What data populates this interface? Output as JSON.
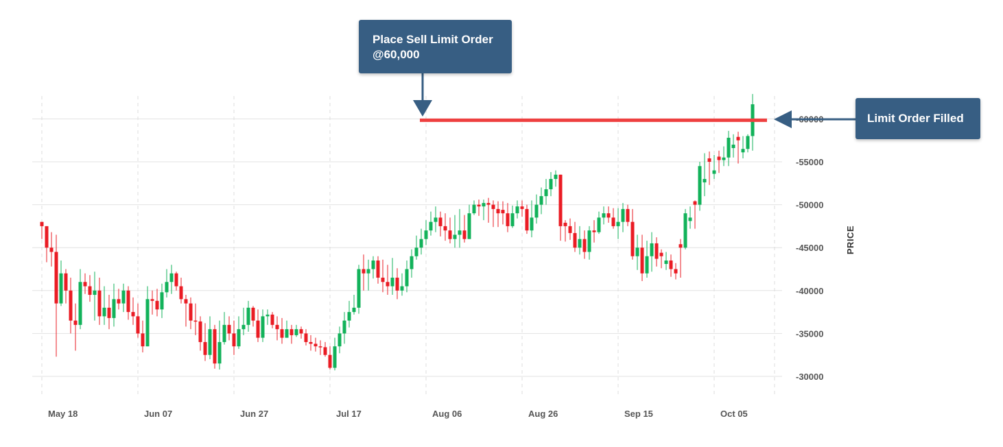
{
  "annotations": {
    "place_order": {
      "line1": "Place Sell Limit Order",
      "line2": "@60,000"
    },
    "filled": {
      "text": "Limit Order Filled"
    }
  },
  "colors": {
    "up": "#12b25a",
    "down": "#ea1c24",
    "limit_line": "#ee4040",
    "callout_bg": "#375e83",
    "grid": "#e2e2e2"
  },
  "chart_data": {
    "type": "candlestick",
    "ylabel": "PRICE",
    "ylim": [
      28000,
      63000
    ],
    "yticks": [
      30000,
      35000,
      40000,
      45000,
      50000,
      55000,
      60000
    ],
    "ytick_labels": [
      "-30000",
      "-35000",
      "-40000",
      "-45000",
      "-50000",
      "-55000",
      "-60000"
    ],
    "x_start_label": "May 18",
    "x_end_label": "Oct 10",
    "xticks": [
      {
        "label": "May 18",
        "day": 0
      },
      {
        "label": "Jun 07",
        "day": 20
      },
      {
        "label": "Jun 27",
        "day": 40
      },
      {
        "label": "Jul 17",
        "day": 60
      },
      {
        "label": "Aug 06",
        "day": 80
      },
      {
        "label": "Aug 26",
        "day": 100
      },
      {
        "label": "Sep 15",
        "day": 120
      },
      {
        "label": "Oct 05",
        "day": 140
      }
    ],
    "x_range_days": [
      -0.5,
      151.5
    ],
    "limit_order": {
      "price": 60000,
      "start_day": 80,
      "end_day": 151
    },
    "grid": true,
    "closes": [
      47500,
      45000,
      44500,
      38500,
      42000,
      40000,
      36500,
      36000,
      41000,
      40500,
      39500,
      40000,
      37000,
      38000,
      36800,
      39000,
      38500,
      40000,
      37500,
      37000,
      35000,
      33500,
      39000,
      38800,
      37800,
      39800,
      41000,
      42000,
      40500,
      39000,
      38500,
      36500,
      36400,
      34000,
      32500,
      35500,
      31500,
      34000,
      36000,
      35000,
      33500,
      35500,
      36000,
      38000,
      36500,
      34500,
      37000,
      37200,
      36000,
      35500,
      34500,
      35500,
      34800,
      35500,
      35000,
      34000,
      33800,
      33500,
      33400,
      32500,
      31000,
      33500,
      35000,
      36500,
      37500,
      38000,
      42500,
      42000,
      42500,
      43500,
      41500,
      41000,
      40500,
      41500,
      40000,
      40500,
      42500,
      44000,
      45000,
      46000,
      47000,
      48000,
      48500,
      47500,
      47000,
      46000,
      46500,
      47000,
      46000,
      49000,
      50000,
      49800,
      50200,
      50000,
      49500,
      49000,
      49000,
      47500,
      49000,
      49800,
      49500,
      47000,
      48500,
      50000,
      51000,
      51800,
      53000,
      53500,
      47500,
      47500,
      46700,
      45000,
      46000,
      44500,
      47000,
      46800,
      48500,
      49000,
      48500,
      47500,
      48000,
      49500,
      48000,
      44000,
      45000,
      42000,
      44000,
      45500,
      43700,
      44000,
      43500,
      42500,
      42000,
      45000,
      49000,
      48500,
      50000,
      54500,
      53000,
      55000,
      54000,
      55200,
      55500,
      57800,
      57000,
      57500,
      56500,
      58000,
      61700
    ],
    "highs": [
      48000,
      47500,
      46800,
      46500,
      43500,
      42500,
      41500,
      38500,
      42500,
      42000,
      41800,
      42200,
      41500,
      40500,
      39500,
      40800,
      40200,
      40800,
      40500,
      39200,
      38500,
      36500,
      40500,
      40000,
      40200,
      40800,
      42500,
      43000,
      42200,
      41500,
      39500,
      39200,
      38500,
      37000,
      36200,
      37000,
      36000,
      36500,
      37500,
      37000,
      36500,
      37000,
      38000,
      38800,
      38200,
      37800,
      37800,
      37800,
      37500,
      37000,
      36800,
      36500,
      36000,
      36000,
      35800,
      35500,
      34800,
      34500,
      34200,
      34000,
      33500,
      34500,
      35800,
      37500,
      38800,
      39500,
      43000,
      44200,
      43600,
      44000,
      44000,
      43600,
      43000,
      43800,
      42600,
      42000,
      43500,
      44800,
      46400,
      47200,
      48200,
      49200,
      49800,
      49200,
      49000,
      48500,
      48800,
      49500,
      48800,
      50000,
      50500,
      50600,
      50600,
      50800,
      50500,
      50400,
      50400,
      50200,
      49900,
      50500,
      50500,
      50000,
      50500,
      51200,
      52000,
      53000,
      53800,
      54000,
      53500,
      48200,
      48400,
      48000,
      47500,
      47000,
      47500,
      48200,
      49200,
      49800,
      49800,
      49600,
      49600,
      50200,
      50000,
      49500,
      46500,
      46500,
      45800,
      46800,
      46200,
      44800,
      44500,
      44200,
      43200,
      46000,
      49500,
      49800,
      50500,
      55000,
      56000,
      56200,
      55800,
      56300,
      56800,
      58600,
      58200,
      58500,
      58000,
      58200,
      62900
    ],
    "lows": [
      46000,
      43300,
      42800,
      32300,
      38200,
      38500,
      35000,
      33000,
      35500,
      39600,
      38700,
      36500,
      36000,
      36000,
      35500,
      35800,
      37800,
      37500,
      36600,
      36000,
      34500,
      32800,
      35500,
      37200,
      37000,
      36800,
      39200,
      39600,
      40000,
      38500,
      35800,
      35500,
      34800,
      33000,
      31800,
      32000,
      30900,
      30800,
      33700,
      34200,
      32500,
      33200,
      34800,
      35200,
      35800,
      34000,
      34000,
      36000,
      35600,
      34200,
      33800,
      34500,
      33800,
      34600,
      34400,
      33600,
      33000,
      32900,
      32500,
      32300,
      30800,
      30700,
      32700,
      33800,
      35700,
      37200,
      37300,
      40000,
      40000,
      41400,
      40800,
      39800,
      39500,
      39500,
      39000,
      39400,
      39800,
      41500,
      43600,
      44200,
      45300,
      46400,
      46800,
      46300,
      45800,
      45500,
      45000,
      45000,
      45600,
      46400,
      48800,
      48700,
      48200,
      47900,
      47400,
      47400,
      47700,
      46800,
      47300,
      48400,
      48600,
      46600,
      46200,
      47800,
      48900,
      50000,
      51000,
      52100,
      45800,
      45700,
      45900,
      44500,
      44200,
      43700,
      43600,
      45600,
      46600,
      47700,
      47900,
      47200,
      46000,
      46800,
      47500,
      43600,
      42400,
      41100,
      41500,
      42200,
      42800,
      42600,
      42400,
      41600,
      41300,
      41500,
      44800,
      47200,
      47200,
      49300,
      51000,
      52300,
      53000,
      53700,
      54500,
      54500,
      55500,
      54800,
      55400,
      56100,
      56300
    ],
    "direction": [
      -1,
      -1,
      -1,
      -1,
      1,
      -1,
      -1,
      -1,
      1,
      -1,
      -1,
      1,
      -1,
      1,
      -1,
      1,
      -1,
      1,
      -1,
      -1,
      -1,
      -1,
      1,
      -1,
      -1,
      1,
      1,
      1,
      -1,
      -1,
      -1,
      -1,
      -1,
      -1,
      -1,
      1,
      -1,
      1,
      1,
      -1,
      -1,
      1,
      1,
      1,
      -1,
      -1,
      1,
      1,
      -1,
      -1,
      -1,
      1,
      -1,
      1,
      -1,
      -1,
      -1,
      -1,
      -1,
      -1,
      -1,
      1,
      1,
      1,
      1,
      1,
      1,
      -1,
      1,
      1,
      -1,
      -1,
      -1,
      1,
      -1,
      1,
      1,
      1,
      1,
      1,
      1,
      1,
      1,
      -1,
      -1,
      -1,
      1,
      1,
      -1,
      1,
      1,
      -1,
      1,
      -1,
      -1,
      -1,
      -1,
      -1,
      1,
      1,
      -1,
      -1,
      1,
      1,
      1,
      1,
      1,
      1,
      -1,
      -1,
      -1,
      -1,
      1,
      -1,
      1,
      -1,
      1,
      1,
      -1,
      -1,
      1,
      1,
      -1,
      -1,
      1,
      -1,
      1,
      1,
      -1,
      -1,
      1,
      -1,
      -1,
      -1,
      1,
      1,
      -1,
      1,
      1,
      -1,
      1,
      -1,
      1,
      1,
      1,
      -1,
      1,
      1,
      1
    ]
  }
}
